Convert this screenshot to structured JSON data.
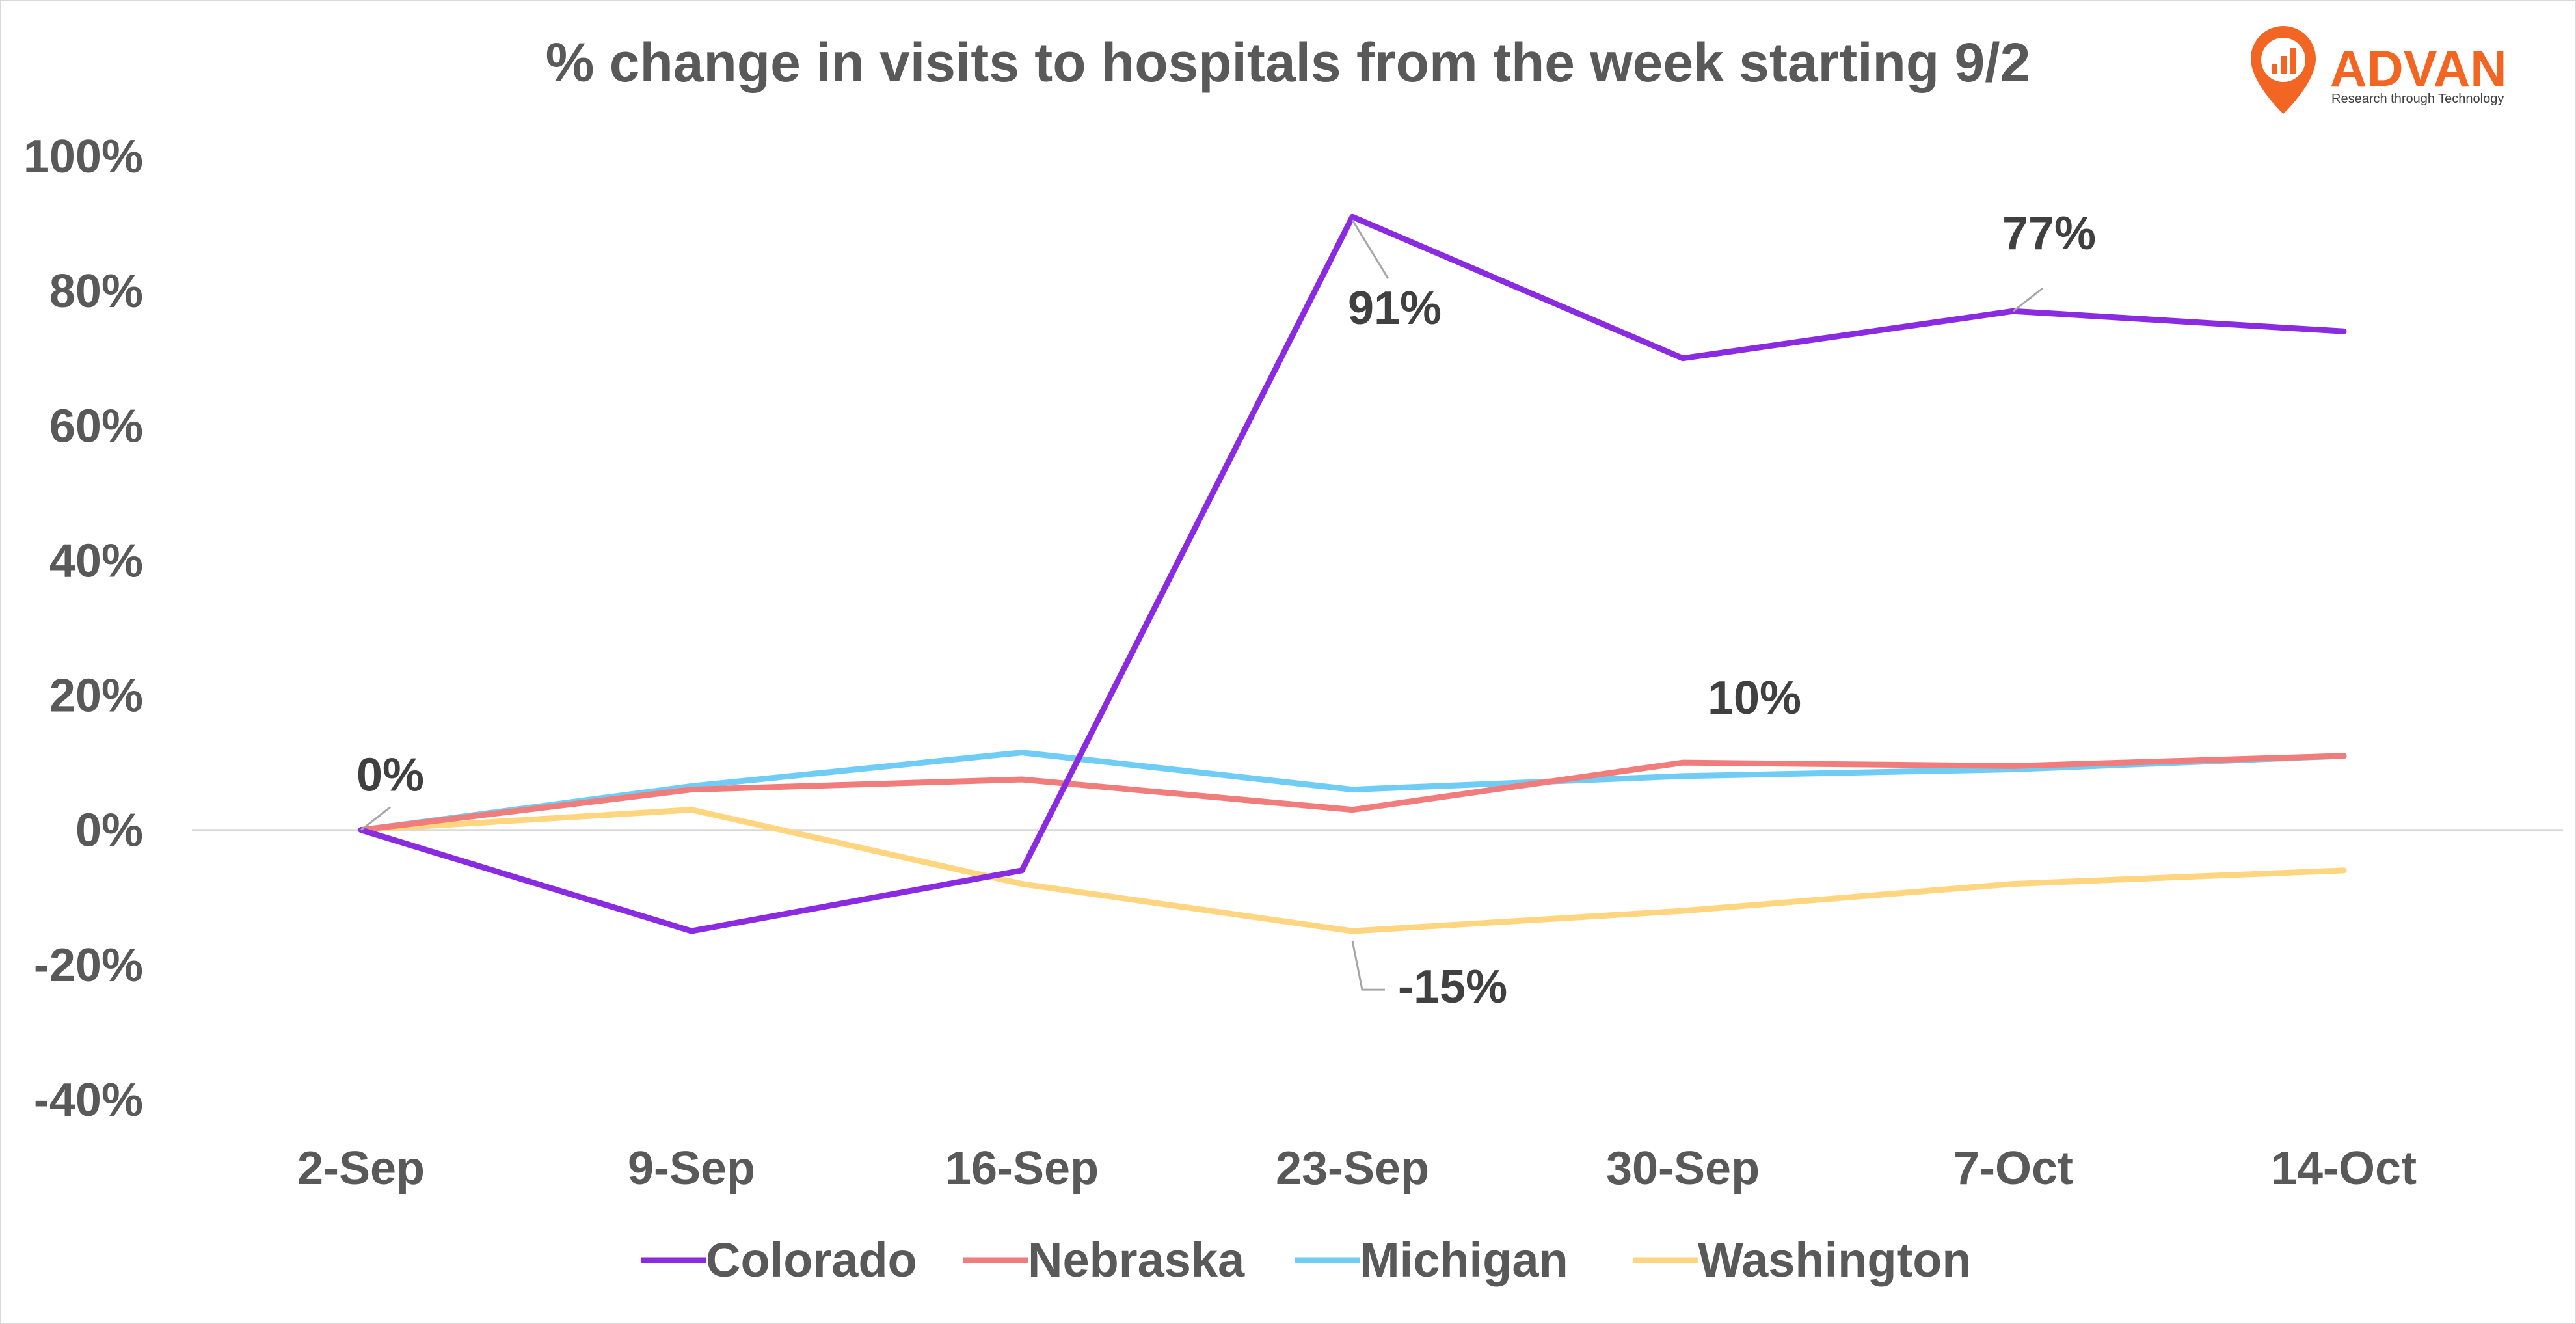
{
  "logo": {
    "name": "ADVAN",
    "tagline": "Research through Technology",
    "color": "#f26522"
  },
  "chart_data": {
    "type": "line",
    "title": "% change in visits to hospitals from the week starting  9/2",
    "categories": [
      "2-Sep",
      "9-Sep",
      "16-Sep",
      "23-Sep",
      "30-Sep",
      "7-Oct",
      "14-Oct"
    ],
    "ylim": [
      -40,
      100
    ],
    "yticks": [
      100,
      80,
      60,
      40,
      20,
      0,
      -20,
      -40
    ],
    "ytick_labels": [
      "100%",
      "80%",
      "60%",
      "40%",
      "20%",
      "0%",
      "-20%",
      "-40%"
    ],
    "grid": false,
    "legend_position": "bottom",
    "series": [
      {
        "name": "Colorado",
        "color": "#8a2be2",
        "values": [
          0,
          -15,
          -6,
          91,
          70,
          77,
          74
        ]
      },
      {
        "name": "Nebraska",
        "color": "#f07c7c",
        "values": [
          0,
          6,
          7.5,
          3,
          10,
          9.5,
          11
        ]
      },
      {
        "name": "Michigan",
        "color": "#6fcdf5",
        "values": [
          0,
          6.5,
          11.5,
          6,
          8,
          9,
          11
        ]
      },
      {
        "name": "Washington",
        "color": "#ffd580",
        "values": [
          0,
          3,
          -8,
          -15,
          -12,
          -8,
          -6
        ]
      }
    ],
    "annotations": [
      {
        "text": "0%",
        "series": 0,
        "index": 0
      },
      {
        "text": "91%",
        "series": 0,
        "index": 3
      },
      {
        "text": "77%",
        "series": 0,
        "index": 5
      },
      {
        "text": "10%",
        "series": 1,
        "index": 4
      },
      {
        "text": "-15%",
        "series": 3,
        "index": 3
      }
    ]
  }
}
